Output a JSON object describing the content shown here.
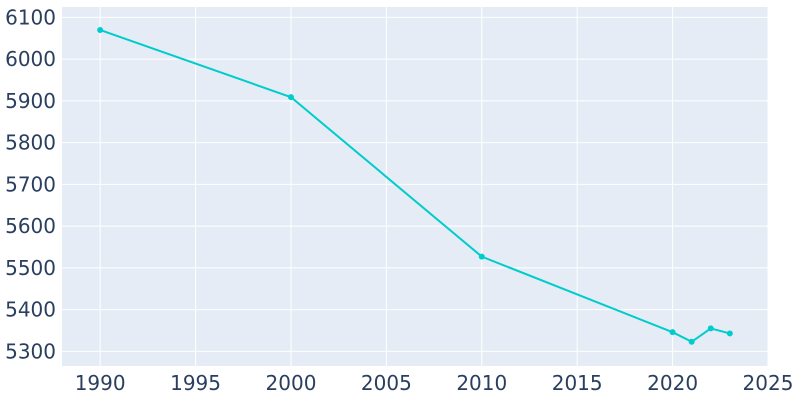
{
  "chart_data": {
    "type": "line",
    "title": "",
    "xlabel": "",
    "ylabel": "",
    "x": [
      1990,
      2000,
      2010,
      2020,
      2021,
      2022,
      2023
    ],
    "series": [
      {
        "values": [
          6070,
          5909,
          5527,
          5346,
          5323,
          5355,
          5343
        ]
      }
    ],
    "xlim": [
      1988,
      2025
    ],
    "ylim": [
      5265,
      6125
    ],
    "xticks": [
      1990,
      1995,
      2000,
      2005,
      2010,
      2015,
      2020,
      2025
    ],
    "yticks": [
      5300,
      5400,
      5500,
      5600,
      5700,
      5800,
      5900,
      6000,
      6100
    ],
    "xtick_labels": [
      "1990",
      "1995",
      "2000",
      "2005",
      "2010",
      "2015",
      "2020",
      "2025"
    ],
    "ytick_labels": [
      "5300",
      "5400",
      "5500",
      "5600",
      "5700",
      "5800",
      "5900",
      "6000",
      "6100"
    ],
    "grid": true,
    "legend": "none",
    "colors": {
      "plot_bg": "#e5ecf6",
      "grid": "#ffffff",
      "line": "#00cccc",
      "text": "#2a3f5f"
    }
  }
}
